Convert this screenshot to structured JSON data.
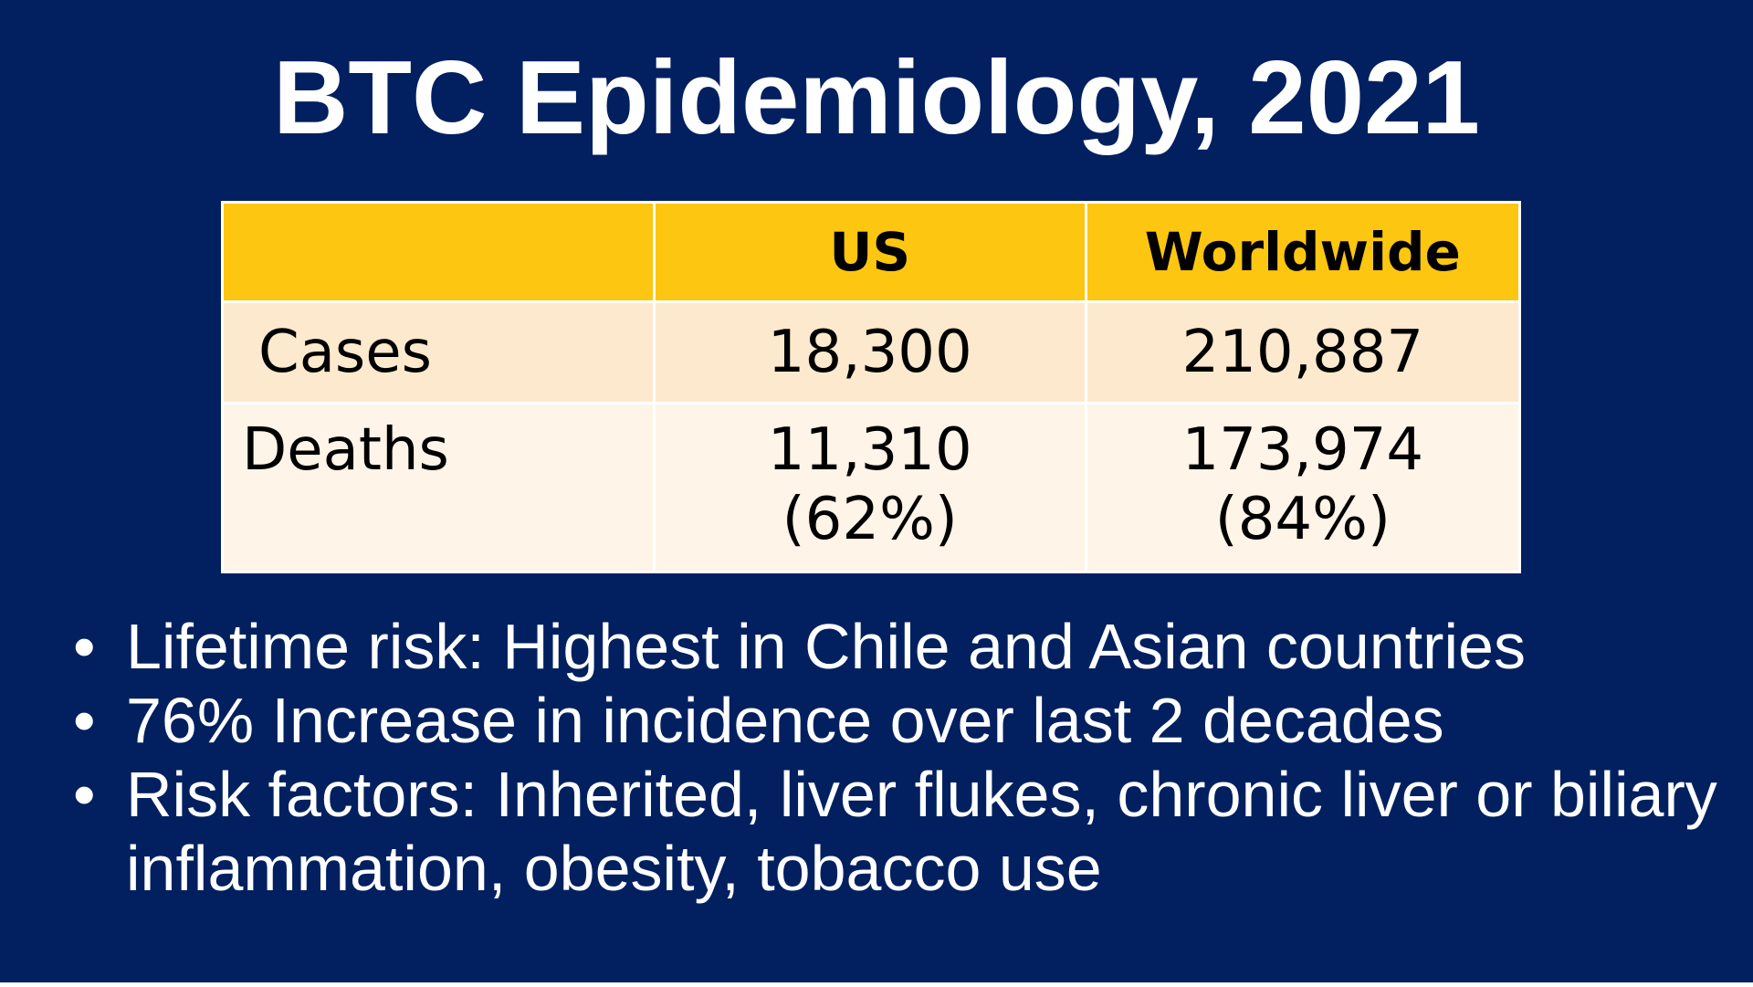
{
  "slide": {
    "title": "BTC Epidemiology, 2021",
    "background_color": "#02205f",
    "accent_color": "#fdc610"
  },
  "table": {
    "headers": [
      "",
      "US",
      "Worldwide"
    ],
    "rows": [
      {
        "label": "Cases",
        "us": "18,300",
        "us_pct": "",
        "worldwide": "210,887",
        "worldwide_pct": ""
      },
      {
        "label": "Deaths",
        "us": "11,310",
        "us_pct": "(62%)",
        "worldwide": "173,974",
        "worldwide_pct": "(84%)"
      }
    ],
    "colors": {
      "header_fill": "#fdc610",
      "row1_fill": "#fde9cd",
      "row2_fill": "#fef4e7"
    }
  },
  "bullets": [
    {
      "marker": "•",
      "text": "Lifetime risk: Highest in Chile and Asian countries"
    },
    {
      "marker": "•",
      "text": "76% Increase in incidence over last 2 decades"
    },
    {
      "marker": "•",
      "text": "Risk factors: Inherited, liver flukes, chronic liver or biliary inflammation, obesity, tobacco use"
    }
  ]
}
